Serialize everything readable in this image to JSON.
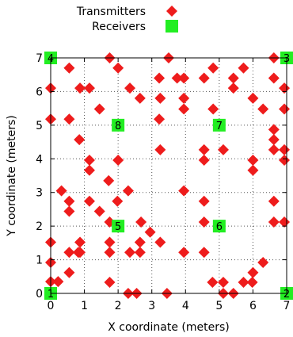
{
  "chart_data": {
    "type": "scatter",
    "xlabel": "X coordinate (meters)",
    "ylabel": "Y coordinate (meters)",
    "xlim": [
      0,
      7
    ],
    "ylim": [
      0,
      7
    ],
    "xticks": [
      "0",
      "1",
      "2",
      "3",
      "4",
      "5",
      "6",
      "7"
    ],
    "yticks": [
      "0",
      "1",
      "2",
      "3",
      "4",
      "5",
      "6",
      "7"
    ],
    "grid": true,
    "grid_style": "dotted",
    "legend_position": "top-right",
    "colors": {
      "transmitters": "#ee1c1c",
      "receivers": "#22ee22"
    },
    "series": [
      {
        "name": "Transmitters",
        "marker": "diamond",
        "points": [
          [
            0.0,
            0.35
          ],
          [
            0.22,
            0.35
          ],
          [
            0.0,
            0.92
          ],
          [
            0.0,
            1.52
          ],
          [
            0.55,
            0.62
          ],
          [
            0.55,
            1.22
          ],
          [
            0.82,
            1.22
          ],
          [
            0.87,
            1.52
          ],
          [
            0.87,
            1.22
          ],
          [
            1.75,
            0.33
          ],
          [
            1.75,
            1.22
          ],
          [
            1.75,
            1.52
          ],
          [
            2.3,
            0.0
          ],
          [
            2.55,
            0.0
          ],
          [
            2.35,
            1.22
          ],
          [
            2.65,
            1.22
          ],
          [
            2.65,
            1.52
          ],
          [
            3.45,
            0.0
          ],
          [
            2.95,
            1.82
          ],
          [
            3.25,
            1.52
          ],
          [
            3.95,
            1.22
          ],
          [
            4.55,
            1.22
          ],
          [
            4.8,
            0.33
          ],
          [
            5.12,
            0.33
          ],
          [
            5.12,
            0.0
          ],
          [
            5.42,
            0.0
          ],
          [
            5.72,
            0.33
          ],
          [
            5.98,
            0.33
          ],
          [
            6.0,
            0.62
          ],
          [
            6.3,
            0.92
          ],
          [
            6.62,
            2.12
          ],
          [
            6.62,
            2.74
          ],
          [
            6.93,
            2.12
          ],
          [
            0.32,
            3.05
          ],
          [
            0.55,
            2.44
          ],
          [
            0.55,
            2.74
          ],
          [
            1.15,
            2.74
          ],
          [
            1.45,
            2.44
          ],
          [
            1.75,
            2.12
          ],
          [
            1.72,
            3.35
          ],
          [
            1.98,
            2.74
          ],
          [
            2.3,
            3.05
          ],
          [
            2.68,
            2.12
          ],
          [
            3.95,
            3.05
          ],
          [
            4.55,
            2.74
          ],
          [
            4.55,
            2.12
          ],
          [
            0.0,
            5.18
          ],
          [
            0.0,
            6.1
          ],
          [
            0.55,
            5.18
          ],
          [
            0.55,
            6.7
          ],
          [
            0.85,
            4.57
          ],
          [
            0.87,
            6.1
          ],
          [
            1.15,
            6.1
          ],
          [
            1.45,
            5.48
          ],
          [
            1.15,
            3.96
          ],
          [
            1.15,
            3.66
          ],
          [
            1.75,
            7.0
          ],
          [
            2.0,
            3.96
          ],
          [
            2.0,
            6.7
          ],
          [
            2.35,
            6.1
          ],
          [
            2.65,
            5.8
          ],
          [
            3.25,
            5.8
          ],
          [
            3.22,
            5.18
          ],
          [
            3.22,
            6.4
          ],
          [
            3.25,
            4.27
          ],
          [
            3.5,
            7.0
          ],
          [
            3.75,
            6.4
          ],
          [
            3.95,
            6.4
          ],
          [
            3.95,
            5.8
          ],
          [
            3.95,
            5.48
          ],
          [
            4.55,
            6.4
          ],
          [
            4.55,
            4.27
          ],
          [
            4.55,
            3.96
          ],
          [
            4.82,
            5.48
          ],
          [
            4.82,
            6.7
          ],
          [
            5.12,
            4.27
          ],
          [
            5.42,
            6.4
          ],
          [
            5.42,
            6.1
          ],
          [
            5.72,
            6.7
          ],
          [
            6.0,
            5.8
          ],
          [
            6.3,
            5.48
          ],
          [
            6.0,
            3.96
          ],
          [
            6.0,
            3.66
          ],
          [
            6.62,
            4.57
          ],
          [
            6.62,
            4.27
          ],
          [
            6.62,
            4.87
          ],
          [
            6.62,
            6.4
          ],
          [
            6.62,
            7.0
          ],
          [
            6.93,
            6.1
          ],
          [
            6.93,
            5.48
          ],
          [
            6.93,
            4.27
          ],
          [
            6.93,
            3.96
          ]
        ]
      },
      {
        "name": "Receivers",
        "marker": "square",
        "points": [
          {
            "label": "1",
            "x": 0.0,
            "y": 0.0
          },
          {
            "label": "2",
            "x": 7.0,
            "y": 0.0
          },
          {
            "label": "3",
            "x": 7.0,
            "y": 7.0
          },
          {
            "label": "4",
            "x": 0.0,
            "y": 7.0
          },
          {
            "label": "5",
            "x": 2.0,
            "y": 2.0
          },
          {
            "label": "6",
            "x": 5.0,
            "y": 2.0
          },
          {
            "label": "7",
            "x": 5.0,
            "y": 5.0
          },
          {
            "label": "8",
            "x": 2.0,
            "y": 5.0
          }
        ]
      }
    ]
  }
}
